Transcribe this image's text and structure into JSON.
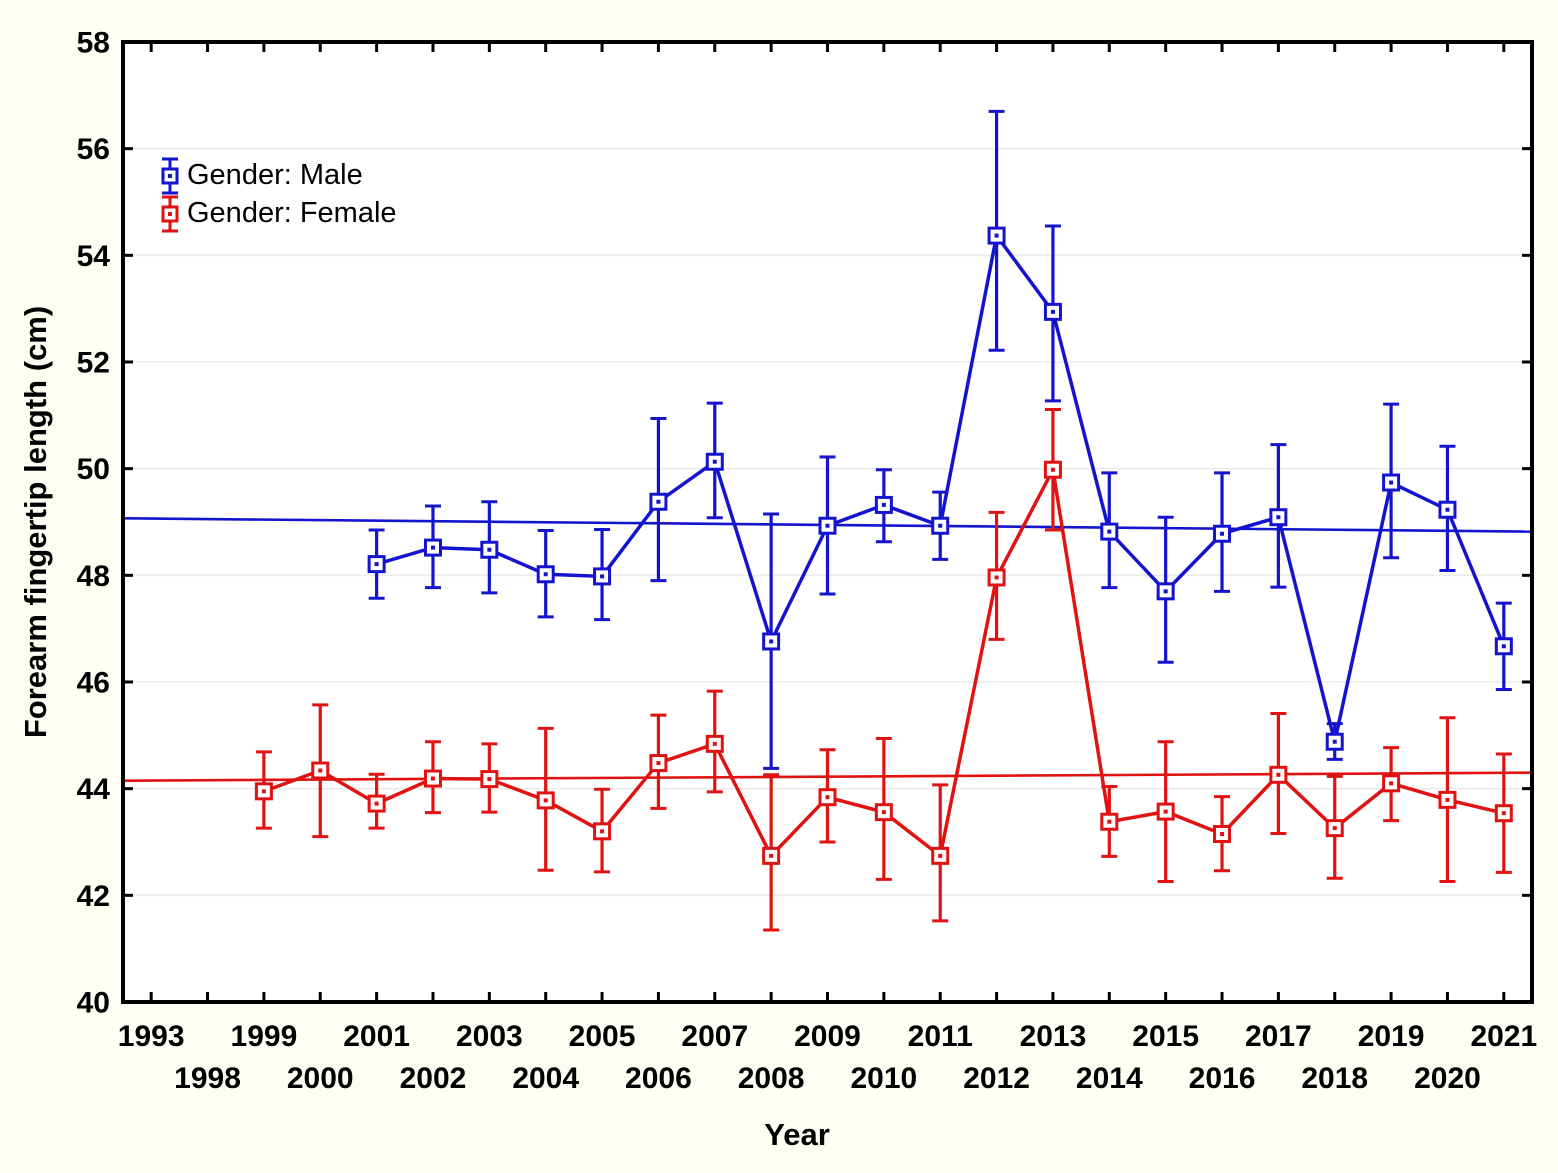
{
  "figure": {
    "page_background": "#FFFEF2",
    "plot_background": "#FFFFFF",
    "grid_color": "#EBEBEB",
    "frame_color": "#000000",
    "text_color": "#000000"
  },
  "chart_data": {
    "type": "line",
    "title": "",
    "xlabel": "Year",
    "ylabel": "Forearm fingertip length (cm)",
    "ylim": [
      40,
      58
    ],
    "yticks": [
      40,
      42,
      44,
      46,
      48,
      50,
      52,
      54,
      56,
      58
    ],
    "grid": "horizontal",
    "marker": "open-square-with-center-dot",
    "error_bars": true,
    "legend_position": "top-left-inside",
    "categories": [
      "1993",
      "1998",
      "1999",
      "2000",
      "2001",
      "2002",
      "2003",
      "2004",
      "2005",
      "2006",
      "2007",
      "2008",
      "2009",
      "2010",
      "2011",
      "2012",
      "2013",
      "2014",
      "2015",
      "2016",
      "2017",
      "2018",
      "2019",
      "2020",
      "2021"
    ],
    "legend": [
      {
        "label": "Gender: Male",
        "color": "#1414CE"
      },
      {
        "label": "Gender: Female",
        "color": "#E01212"
      }
    ],
    "series": [
      {
        "name": "Gender: Male",
        "color": "#1414CE",
        "trend_line": {
          "left_value": 49.07,
          "right_value": 48.82
        },
        "points": [
          {
            "year": "2001",
            "mean": 48.21,
            "lo": 47.57,
            "hi": 48.85
          },
          {
            "year": "2002",
            "mean": 48.52,
            "lo": 47.77,
            "hi": 49.3
          },
          {
            "year": "2003",
            "mean": 48.48,
            "lo": 47.67,
            "hi": 49.38
          },
          {
            "year": "2004",
            "mean": 48.02,
            "lo": 47.22,
            "hi": 48.84
          },
          {
            "year": "2005",
            "mean": 47.98,
            "lo": 47.17,
            "hi": 48.86
          },
          {
            "year": "2006",
            "mean": 49.38,
            "lo": 47.9,
            "hi": 50.94
          },
          {
            "year": "2007",
            "mean": 50.13,
            "lo": 49.08,
            "hi": 51.23
          },
          {
            "year": "2008",
            "mean": 46.76,
            "lo": 44.38,
            "hi": 49.15
          },
          {
            "year": "2009",
            "mean": 48.93,
            "lo": 47.65,
            "hi": 50.22
          },
          {
            "year": "2010",
            "mean": 49.32,
            "lo": 48.63,
            "hi": 49.98
          },
          {
            "year": "2011",
            "mean": 48.93,
            "lo": 48.3,
            "hi": 49.56
          },
          {
            "year": "2012",
            "mean": 54.37,
            "lo": 52.22,
            "hi": 56.7
          },
          {
            "year": "2013",
            "mean": 52.94,
            "lo": 51.27,
            "hi": 54.55
          },
          {
            "year": "2014",
            "mean": 48.82,
            "lo": 47.77,
            "hi": 49.92
          },
          {
            "year": "2015",
            "mean": 47.7,
            "lo": 46.37,
            "hi": 49.09
          },
          {
            "year": "2016",
            "mean": 48.78,
            "lo": 47.7,
            "hi": 49.92
          },
          {
            "year": "2017",
            "mean": 49.09,
            "lo": 47.78,
            "hi": 50.45
          },
          {
            "year": "2018",
            "mean": 44.88,
            "lo": 44.55,
            "hi": 45.22
          },
          {
            "year": "2019",
            "mean": 49.74,
            "lo": 48.33,
            "hi": 51.21
          },
          {
            "year": "2020",
            "mean": 49.23,
            "lo": 48.09,
            "hi": 50.42
          },
          {
            "year": "2021",
            "mean": 46.67,
            "lo": 45.86,
            "hi": 47.48
          }
        ]
      },
      {
        "name": "Gender: Female",
        "color": "#E01212",
        "trend_line": {
          "left_value": 44.15,
          "right_value": 44.3
        },
        "points": [
          {
            "year": "1999",
            "mean": 43.95,
            "lo": 43.26,
            "hi": 44.69
          },
          {
            "year": "2000",
            "mean": 44.34,
            "lo": 43.1,
            "hi": 45.57
          },
          {
            "year": "2001",
            "mean": 43.72,
            "lo": 43.26,
            "hi": 44.27
          },
          {
            "year": "2002",
            "mean": 44.19,
            "lo": 43.55,
            "hi": 44.88
          },
          {
            "year": "2003",
            "mean": 44.18,
            "lo": 43.56,
            "hi": 44.84
          },
          {
            "year": "2004",
            "mean": 43.78,
            "lo": 42.47,
            "hi": 45.13
          },
          {
            "year": "2005",
            "mean": 43.2,
            "lo": 42.44,
            "hi": 43.99
          },
          {
            "year": "2006",
            "mean": 44.48,
            "lo": 43.63,
            "hi": 45.38
          },
          {
            "year": "2007",
            "mean": 44.84,
            "lo": 43.94,
            "hi": 45.83
          },
          {
            "year": "2008",
            "mean": 42.74,
            "lo": 41.35,
            "hi": 44.26
          },
          {
            "year": "2009",
            "mean": 43.84,
            "lo": 43.0,
            "hi": 44.73
          },
          {
            "year": "2010",
            "mean": 43.56,
            "lo": 42.3,
            "hi": 44.94
          },
          {
            "year": "2011",
            "mean": 42.74,
            "lo": 41.52,
            "hi": 44.07
          },
          {
            "year": "2012",
            "mean": 47.96,
            "lo": 46.8,
            "hi": 49.18
          },
          {
            "year": "2013",
            "mean": 49.98,
            "lo": 48.85,
            "hi": 51.11
          },
          {
            "year": "2014",
            "mean": 43.38,
            "lo": 42.73,
            "hi": 44.04
          },
          {
            "year": "2015",
            "mean": 43.57,
            "lo": 42.26,
            "hi": 44.88
          },
          {
            "year": "2016",
            "mean": 43.15,
            "lo": 42.46,
            "hi": 43.85
          },
          {
            "year": "2017",
            "mean": 44.26,
            "lo": 43.16,
            "hi": 45.41
          },
          {
            "year": "2018",
            "mean": 43.26,
            "lo": 42.32,
            "hi": 44.23
          },
          {
            "year": "2019",
            "mean": 44.1,
            "lo": 43.4,
            "hi": 44.77
          },
          {
            "year": "2020",
            "mean": 43.79,
            "lo": 42.26,
            "hi": 45.33
          },
          {
            "year": "2021",
            "mean": 43.54,
            "lo": 42.43,
            "hi": 44.65
          }
        ]
      }
    ]
  }
}
